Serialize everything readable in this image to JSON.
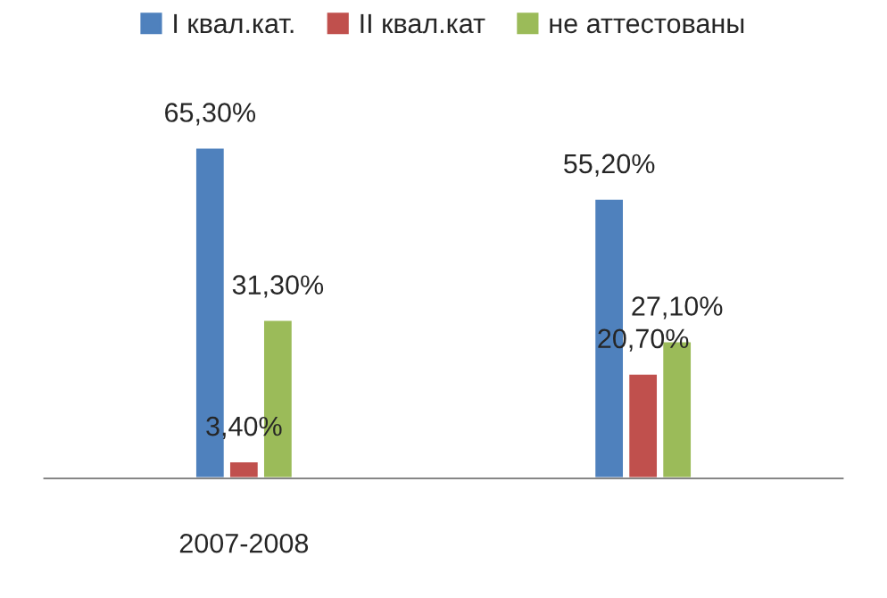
{
  "chart_data": {
    "type": "bar",
    "categories": [
      "2007-2008",
      null
    ],
    "series": [
      {
        "name": "I квал.кат.",
        "color": "#4f81bd",
        "values": [
          65.3,
          55.2
        ],
        "value_labels": [
          "65,30%",
          "55,20%"
        ]
      },
      {
        "name": "II квал.кат",
        "color": "#c0504d",
        "values": [
          3.4,
          20.7
        ],
        "value_labels": [
          "3,40%",
          "20,70%"
        ]
      },
      {
        "name": "не аттестованы",
        "color": "#9bbb59",
        "values": [
          31.3,
          27.1
        ],
        "value_labels": [
          "31,30%",
          "27,10%"
        ]
      }
    ],
    "legend": "top",
    "grid": false
  }
}
